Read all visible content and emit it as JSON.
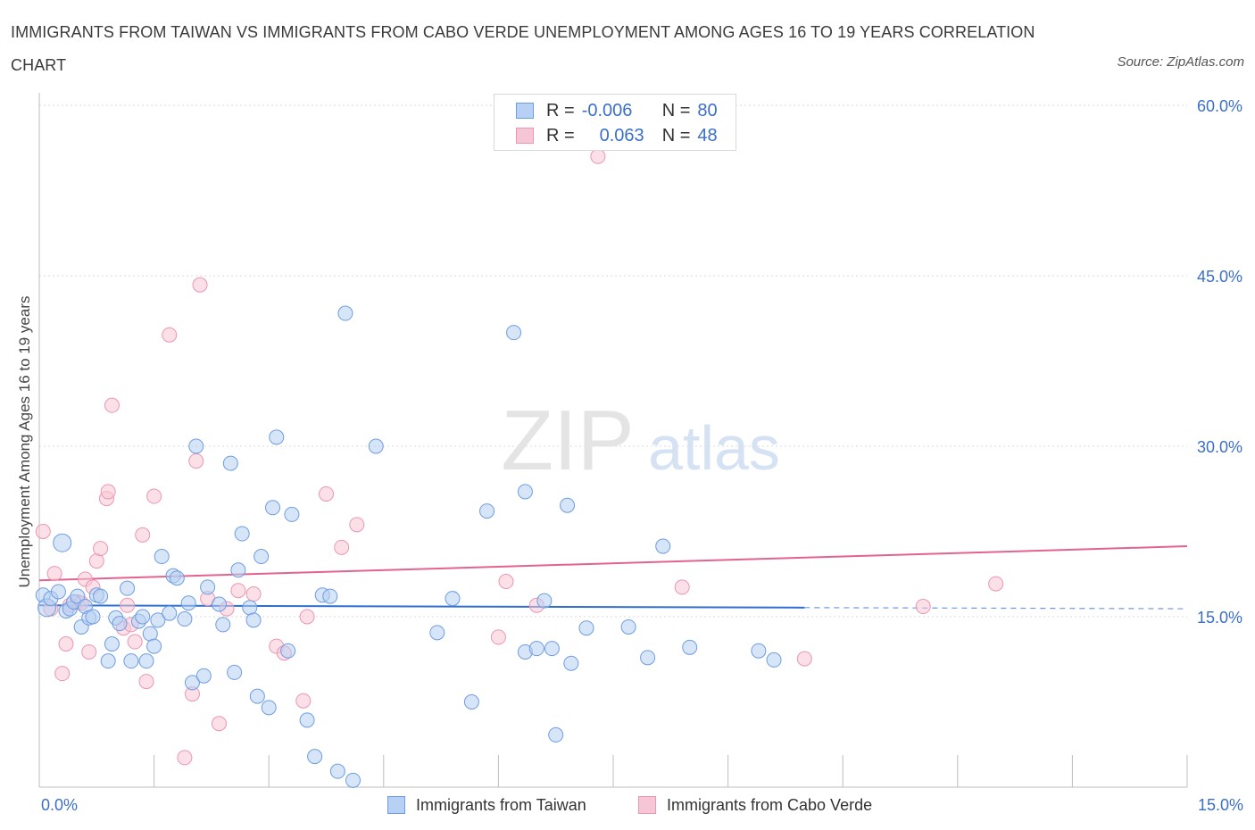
{
  "header": {
    "title": "IMMIGRANTS FROM TAIWAN VS IMMIGRANTS FROM CABO VERDE UNEMPLOYMENT AMONG AGES 16 TO 19 YEARS CORRELATION CHART",
    "source": "Source: ZipAtlas.com"
  },
  "watermark": {
    "zip": "ZIP",
    "atlas": "atlas"
  },
  "legend": {
    "r_label": "R =",
    "n_label": "N =",
    "rows": [
      {
        "r": "-0.006",
        "n": "80"
      },
      {
        "r": "0.063",
        "n": "48"
      }
    ]
  },
  "colors": {
    "taiwan_fill": "#b7d0f3",
    "taiwan_stroke": "#6e9de0",
    "taiwan_line": "#2f6fd0",
    "cabo_fill": "#f7c6d6",
    "cabo_stroke": "#eb96b2",
    "cabo_line": "#e3638f",
    "tick_label": "#3b6fc7",
    "grid": "#d9d9d9"
  },
  "chart_data": {
    "type": "scatter",
    "title": "IMMIGRANTS FROM TAIWAN VS IMMIGRANTS FROM CABO VERDE UNEMPLOYMENT AMONG AGES 16 TO 19 YEARS CORRELATION CHART",
    "xlabel": "",
    "ylabel": "Unemployment Among Ages 16 to 19 years",
    "xlim": [
      0,
      15
    ],
    "ylim": [
      0,
      60
    ],
    "x_tick_labels": [
      "0.0%",
      "15.0%"
    ],
    "y_ticks": [
      15,
      30,
      45,
      60
    ],
    "y_tick_labels": [
      "15.0%",
      "30.0%",
      "45.0%",
      "60.0%"
    ],
    "grid": true,
    "legend_position": "top-center",
    "series": [
      {
        "name": "Immigrants from Taiwan",
        "color": "#6e9de0",
        "r": -0.006,
        "n": 80,
        "trend": {
          "x": [
            0,
            10
          ],
          "y": [
            16.0,
            15.8
          ],
          "dashed_to": 15
        },
        "points": [
          [
            0.05,
            16.9
          ],
          [
            0.1,
            15.8
          ],
          [
            0.15,
            16.6
          ],
          [
            0.25,
            17.2
          ],
          [
            0.3,
            21.5
          ],
          [
            0.35,
            15.5
          ],
          [
            0.4,
            15.7
          ],
          [
            0.45,
            16.3
          ],
          [
            0.5,
            16.8
          ],
          [
            0.55,
            14.1
          ],
          [
            0.6,
            15.9
          ],
          [
            0.65,
            14.9
          ],
          [
            0.7,
            15.0
          ],
          [
            0.75,
            16.9
          ],
          [
            0.8,
            16.8
          ],
          [
            0.9,
            11.1
          ],
          [
            0.95,
            12.6
          ],
          [
            1.0,
            14.9
          ],
          [
            1.05,
            14.4
          ],
          [
            1.15,
            17.5
          ],
          [
            1.2,
            11.1
          ],
          [
            1.3,
            14.6
          ],
          [
            1.35,
            15.0
          ],
          [
            1.4,
            11.1
          ],
          [
            1.45,
            13.5
          ],
          [
            1.5,
            12.4
          ],
          [
            1.55,
            14.7
          ],
          [
            1.6,
            20.3
          ],
          [
            1.7,
            15.3
          ],
          [
            1.75,
            18.6
          ],
          [
            1.8,
            18.4
          ],
          [
            1.9,
            14.8
          ],
          [
            1.95,
            16.2
          ],
          [
            2.0,
            9.2
          ],
          [
            2.05,
            30.0
          ],
          [
            2.15,
            9.8
          ],
          [
            2.2,
            17.6
          ],
          [
            2.35,
            16.1
          ],
          [
            2.4,
            14.3
          ],
          [
            2.5,
            28.5
          ],
          [
            2.55,
            10.1
          ],
          [
            2.6,
            19.1
          ],
          [
            2.65,
            22.3
          ],
          [
            2.75,
            15.8
          ],
          [
            2.8,
            14.7
          ],
          [
            2.85,
            8.0
          ],
          [
            2.9,
            20.3
          ],
          [
            3.0,
            7.0
          ],
          [
            3.05,
            24.6
          ],
          [
            3.1,
            30.8
          ],
          [
            3.25,
            12.0
          ],
          [
            3.3,
            24.0
          ],
          [
            3.5,
            5.9
          ],
          [
            3.6,
            2.7
          ],
          [
            3.7,
            16.9
          ],
          [
            3.8,
            16.8
          ],
          [
            3.9,
            1.4
          ],
          [
            4.0,
            41.7
          ],
          [
            4.1,
            0.6
          ],
          [
            4.4,
            30.0
          ],
          [
            5.2,
            13.6
          ],
          [
            5.4,
            16.6
          ],
          [
            5.65,
            7.5
          ],
          [
            5.85,
            24.3
          ],
          [
            6.2,
            40.0
          ],
          [
            6.35,
            26.0
          ],
          [
            6.35,
            11.9
          ],
          [
            6.5,
            12.2
          ],
          [
            6.6,
            16.4
          ],
          [
            6.7,
            12.2
          ],
          [
            6.75,
            4.6
          ],
          [
            6.9,
            24.8
          ],
          [
            6.95,
            10.9
          ],
          [
            7.15,
            14.0
          ],
          [
            7.7,
            14.1
          ],
          [
            7.95,
            11.4
          ],
          [
            8.15,
            21.2
          ],
          [
            8.5,
            12.3
          ],
          [
            9.4,
            12.0
          ],
          [
            9.6,
            11.2
          ]
        ]
      },
      {
        "name": "Immigrants from Cabo Verde",
        "color": "#eb96b2",
        "r": 0.063,
        "n": 48,
        "trend": {
          "x": [
            0,
            15
          ],
          "y": [
            18.2,
            21.2
          ]
        },
        "points": [
          [
            0.05,
            22.5
          ],
          [
            0.15,
            15.7
          ],
          [
            0.2,
            18.8
          ],
          [
            0.3,
            10.0
          ],
          [
            0.35,
            12.6
          ],
          [
            0.4,
            16.0
          ],
          [
            0.5,
            16.3
          ],
          [
            0.55,
            16.2
          ],
          [
            0.6,
            18.3
          ],
          [
            0.65,
            11.9
          ],
          [
            0.7,
            17.6
          ],
          [
            0.75,
            19.9
          ],
          [
            0.8,
            21.0
          ],
          [
            0.88,
            25.4
          ],
          [
            0.9,
            26.0
          ],
          [
            0.95,
            33.6
          ],
          [
            1.1,
            14.0
          ],
          [
            1.15,
            16.0
          ],
          [
            1.2,
            14.3
          ],
          [
            1.25,
            12.8
          ],
          [
            1.35,
            22.2
          ],
          [
            1.4,
            9.3
          ],
          [
            1.5,
            25.6
          ],
          [
            1.7,
            39.8
          ],
          [
            1.9,
            2.6
          ],
          [
            2.0,
            8.2
          ],
          [
            2.05,
            28.7
          ],
          [
            2.1,
            44.2
          ],
          [
            2.2,
            16.6
          ],
          [
            2.35,
            5.6
          ],
          [
            2.45,
            15.7
          ],
          [
            2.6,
            17.3
          ],
          [
            2.8,
            17.0
          ],
          [
            3.1,
            12.4
          ],
          [
            3.2,
            11.8
          ],
          [
            3.45,
            7.6
          ],
          [
            3.5,
            15.0
          ],
          [
            3.75,
            25.8
          ],
          [
            3.95,
            21.1
          ],
          [
            4.15,
            23.1
          ],
          [
            6.0,
            13.2
          ],
          [
            6.1,
            18.1
          ],
          [
            7.3,
            55.5
          ],
          [
            8.4,
            17.6
          ],
          [
            10.0,
            11.3
          ],
          [
            11.55,
            15.9
          ],
          [
            12.5,
            17.9
          ],
          [
            6.5,
            16.0
          ]
        ]
      }
    ]
  },
  "bottom_legend": {
    "taiwan_label": "Immigrants from Taiwan",
    "cabo_label": "Immigrants from Cabo Verde"
  }
}
